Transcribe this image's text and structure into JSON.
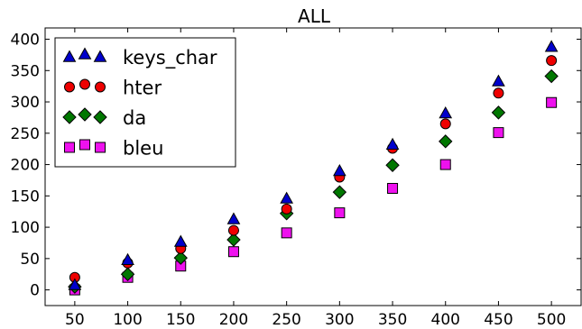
{
  "chart_data": {
    "type": "scatter",
    "title": "ALL",
    "x": [
      50,
      100,
      150,
      200,
      250,
      300,
      350,
      400,
      450,
      500
    ],
    "xticks": [
      "50",
      "100",
      "150",
      "200",
      "250",
      "300",
      "350",
      "400",
      "450",
      "500"
    ],
    "xlim": [
      22,
      528
    ],
    "ylim": [
      -25,
      418
    ],
    "yticks": [
      "0",
      "50",
      "100",
      "150",
      "200",
      "250",
      "300",
      "350",
      "400"
    ],
    "legend_position": "top-left",
    "series": [
      {
        "name": "keys_char",
        "marker": "triangle",
        "color": "#0000cc",
        "values": [
          8,
          48,
          77,
          113,
          146,
          190,
          232,
          282,
          333,
          388
        ]
      },
      {
        "name": "hter",
        "marker": "circle",
        "color": "#ee0000",
        "values": [
          20,
          43,
          66,
          95,
          129,
          180,
          226,
          265,
          314,
          366
        ]
      },
      {
        "name": "da",
        "marker": "diamond",
        "color": "#007700",
        "values": [
          5,
          25,
          51,
          80,
          122,
          156,
          199,
          237,
          283,
          341
        ]
      },
      {
        "name": "bleu",
        "marker": "square",
        "color": "#ee11ee",
        "values": [
          0,
          20,
          38,
          61,
          91,
          123,
          162,
          200,
          251,
          299
        ]
      }
    ]
  }
}
